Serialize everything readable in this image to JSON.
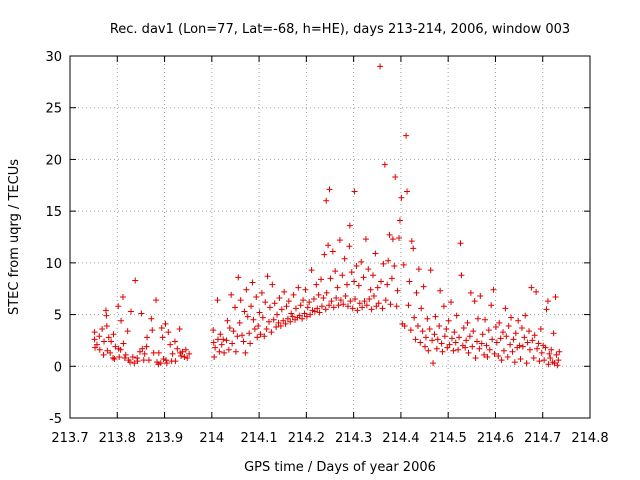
{
  "chart_data": {
    "type": "scatter",
    "title": "Rec. dav1 (Lon=77, Lat=-68, h=HE), days 213-214, 2006, window 003",
    "xlabel": "GPS time / Days of year 2006",
    "ylabel": "STEC from uqrg / TECUs",
    "xlim": [
      213.7,
      214.8
    ],
    "ylim": [
      -5,
      30
    ],
    "x_ticks": [
      "213.7",
      "213.8",
      "213.9",
      "214",
      "214.1",
      "214.2",
      "214.3",
      "214.4",
      "214.5",
      "214.6",
      "214.7",
      "214.8"
    ],
    "y_ticks": [
      "-5",
      "0",
      "5",
      "10",
      "15",
      "20",
      "25",
      "30"
    ],
    "grid": true,
    "marker": "+",
    "color": "#e00000",
    "points": [
      [
        213.752,
        3.3
      ],
      [
        213.752,
        2.6
      ],
      [
        213.753,
        1.8
      ],
      [
        213.757,
        2.1
      ],
      [
        213.762,
        2.9
      ],
      [
        213.763,
        1.6
      ],
      [
        213.768,
        3.6
      ],
      [
        213.771,
        1.1
      ],
      [
        213.772,
        2.4
      ],
      [
        213.776,
        5.4
      ],
      [
        213.777,
        4.9
      ],
      [
        213.778,
        3.9
      ],
      [
        213.779,
        1.5
      ],
      [
        213.782,
        2.8
      ],
      [
        213.785,
        1.3
      ],
      [
        213.787,
        2.4
      ],
      [
        213.791,
        0.8
      ],
      [
        213.792,
        3.1
      ],
      [
        213.794,
        0.7
      ],
      [
        213.796,
        1.9
      ],
      [
        213.802,
        5.8
      ],
      [
        213.803,
        1.7
      ],
      [
        213.804,
        0.9
      ],
      [
        213.807,
        1.6
      ],
      [
        213.808,
        4.4
      ],
      [
        213.812,
        6.7
      ],
      [
        213.813,
        2.2
      ],
      [
        213.816,
        0.8
      ],
      [
        213.818,
        1.1
      ],
      [
        213.822,
        3.4
      ],
      [
        213.824,
        0.6
      ],
      [
        213.827,
        0.4
      ],
      [
        213.829,
        5.3
      ],
      [
        213.833,
        0.9
      ],
      [
        213.836,
        0.3
      ],
      [
        213.838,
        8.3
      ],
      [
        213.842,
        0.8
      ],
      [
        213.843,
        0.5
      ],
      [
        213.848,
        1.4
      ],
      [
        213.851,
        5.1
      ],
      [
        213.853,
        1.7
      ],
      [
        213.856,
        0.6
      ],
      [
        213.858,
        1.2
      ],
      [
        213.862,
        1.9
      ],
      [
        213.863,
        2.8
      ],
      [
        213.867,
        0.6
      ],
      [
        213.872,
        4.6
      ],
      [
        213.874,
        3.5
      ],
      [
        213.877,
        1.3
      ],
      [
        213.882,
        6.4
      ],
      [
        213.884,
        0.4
      ],
      [
        213.887,
        0.2
      ],
      [
        213.888,
        1.3
      ],
      [
        213.892,
        0.3
      ],
      [
        213.894,
        3.7
      ],
      [
        213.896,
        2.8
      ],
      [
        213.898,
        0.7
      ],
      [
        213.902,
        4.1
      ],
      [
        213.903,
        0.6
      ],
      [
        213.905,
        0.3
      ],
      [
        213.908,
        3.3
      ],
      [
        213.912,
        2.1
      ],
      [
        213.915,
        0.5
      ],
      [
        213.917,
        1.2
      ],
      [
        213.922,
        2.4
      ],
      [
        213.923,
        0.5
      ],
      [
        213.927,
        1.7
      ],
      [
        213.932,
        3.6
      ],
      [
        213.933,
        1.3
      ],
      [
        213.935,
        1.0
      ],
      [
        213.938,
        1.4
      ],
      [
        213.942,
        0.9
      ],
      [
        213.945,
        1.6
      ],
      [
        213.948,
        0.8
      ],
      [
        213.952,
        1.2
      ],
      [
        214.003,
        3.5
      ],
      [
        214.004,
        2.3
      ],
      [
        214.005,
        0.9
      ],
      [
        214.007,
        1.8
      ],
      [
        214.012,
        6.4
      ],
      [
        214.013,
        2.6
      ],
      [
        214.016,
        1.4
      ],
      [
        214.018,
        3.1
      ],
      [
        214.021,
        2.1
      ],
      [
        214.024,
        2.6
      ],
      [
        214.026,
        1.3
      ],
      [
        214.031,
        2.5
      ],
      [
        214.033,
        4.4
      ],
      [
        214.036,
        1.6
      ],
      [
        214.038,
        3.7
      ],
      [
        214.041,
        6.9
      ],
      [
        214.043,
        2.2
      ],
      [
        214.046,
        3.4
      ],
      [
        214.049,
        5.7
      ],
      [
        214.051,
        1.4
      ],
      [
        214.054,
        2.9
      ],
      [
        214.056,
        8.6
      ],
      [
        214.059,
        4.2
      ],
      [
        214.061,
        6.4
      ],
      [
        214.064,
        3.0
      ],
      [
        214.067,
        2.4
      ],
      [
        214.069,
        5.3
      ],
      [
        214.071,
        1.3
      ],
      [
        214.073,
        7.4
      ],
      [
        214.076,
        4.8
      ],
      [
        214.079,
        3.2
      ],
      [
        214.081,
        2.2
      ],
      [
        214.083,
        5.8
      ],
      [
        214.086,
        8.1
      ],
      [
        214.088,
        4.5
      ],
      [
        214.091,
        3.6
      ],
      [
        214.094,
        6.7
      ],
      [
        214.096,
        2.8
      ],
      [
        214.098,
        3.9
      ],
      [
        214.101,
        5.2
      ],
      [
        214.103,
        3.1
      ],
      [
        214.106,
        7.1
      ],
      [
        214.108,
        4.7
      ],
      [
        214.111,
        2.9
      ],
      [
        214.113,
        6.2
      ],
      [
        214.116,
        3.6
      ],
      [
        214.118,
        8.7
      ],
      [
        214.121,
        4.3
      ],
      [
        214.123,
        5.7
      ],
      [
        214.126,
        3.3
      ],
      [
        214.128,
        7.9
      ],
      [
        214.131,
        4.5
      ],
      [
        214.133,
        6.1
      ],
      [
        214.136,
        3.8
      ],
      [
        214.138,
        5.0
      ],
      [
        214.141,
        4.2
      ],
      [
        214.143,
        6.6
      ],
      [
        214.146,
        3.9
      ],
      [
        214.148,
        5.5
      ],
      [
        214.151,
        4.4
      ],
      [
        214.153,
        7.2
      ],
      [
        214.156,
        4.1
      ],
      [
        214.158,
        5.8
      ],
      [
        214.161,
        4.6
      ],
      [
        214.163,
        6.3
      ],
      [
        214.166,
        4.3
      ],
      [
        214.168,
        5.1
      ],
      [
        214.171,
        4.8
      ],
      [
        214.173,
        6.9
      ],
      [
        214.176,
        4.5
      ],
      [
        214.178,
        5.6
      ],
      [
        214.181,
        4.7
      ],
      [
        214.183,
        7.6
      ],
      [
        214.186,
        4.9
      ],
      [
        214.188,
        5.9
      ],
      [
        214.191,
        4.6
      ],
      [
        214.193,
        6.4
      ],
      [
        214.196,
        5.1
      ],
      [
        214.198,
        7.4
      ],
      [
        214.201,
        4.8
      ],
      [
        214.203,
        5.7
      ],
      [
        214.206,
        6.2
      ],
      [
        214.208,
        5.0
      ],
      [
        214.211,
        9.3
      ],
      [
        214.213,
        5.4
      ],
      [
        214.216,
        6.5
      ],
      [
        214.218,
        5.3
      ],
      [
        214.221,
        7.9
      ],
      [
        214.223,
        5.6
      ],
      [
        214.226,
        6.9
      ],
      [
        214.228,
        5.2
      ],
      [
        214.231,
        8.4
      ],
      [
        214.233,
        5.8
      ],
      [
        214.236,
        6.6
      ],
      [
        214.238,
        10.8
      ],
      [
        214.241,
        5.5
      ],
      [
        214.242,
        16.0
      ],
      [
        214.243,
        7.1
      ],
      [
        214.246,
        11.7
      ],
      [
        214.248,
        5.9
      ],
      [
        214.249,
        17.1
      ],
      [
        214.251,
        8.5
      ],
      [
        214.253,
        6.3
      ],
      [
        214.256,
        11.1
      ],
      [
        214.258,
        5.7
      ],
      [
        214.261,
        9.2
      ],
      [
        214.263,
        6.6
      ],
      [
        214.266,
        7.6
      ],
      [
        214.268,
        5.9
      ],
      [
        214.271,
        12.2
      ],
      [
        214.273,
        6.4
      ],
      [
        214.276,
        8.8
      ],
      [
        214.278,
        6.0
      ],
      [
        214.281,
        10.4
      ],
      [
        214.283,
        6.8
      ],
      [
        214.286,
        7.9
      ],
      [
        214.288,
        5.8
      ],
      [
        214.291,
        11.6
      ],
      [
        214.292,
        13.6
      ],
      [
        214.293,
        6.3
      ],
      [
        214.296,
        9.1
      ],
      [
        214.298,
        5.6
      ],
      [
        214.301,
        8.2
      ],
      [
        214.302,
        16.9
      ],
      [
        214.303,
        6.5
      ],
      [
        214.306,
        9.7
      ],
      [
        214.308,
        5.4
      ],
      [
        214.311,
        7.8
      ],
      [
        214.313,
        6.1
      ],
      [
        214.316,
        10.1
      ],
      [
        214.318,
        5.7
      ],
      [
        214.321,
        8.6
      ],
      [
        214.323,
        6.3
      ],
      [
        214.326,
        12.3
      ],
      [
        214.328,
        5.9
      ],
      [
        214.331,
        9.4
      ],
      [
        214.333,
        6.5
      ],
      [
        214.336,
        7.4
      ],
      [
        214.338,
        5.5
      ],
      [
        214.341,
        8.8
      ],
      [
        214.343,
        6.8
      ],
      [
        214.346,
        10.9
      ],
      [
        214.348,
        5.8
      ],
      [
        214.351,
        7.6
      ],
      [
        214.353,
        6.1
      ],
      [
        214.356,
        29.0
      ],
      [
        214.358,
        8.2
      ],
      [
        214.361,
        5.6
      ],
      [
        214.363,
        9.9
      ],
      [
        214.366,
        19.5
      ],
      [
        214.368,
        6.4
      ],
      [
        214.371,
        7.9
      ],
      [
        214.373,
        10.2
      ],
      [
        214.376,
        12.7
      ],
      [
        214.378,
        6.0
      ],
      [
        214.381,
        8.5
      ],
      [
        214.383,
        12.3
      ],
      [
        214.386,
        9.7
      ],
      [
        214.388,
        18.3
      ],
      [
        214.391,
        5.8
      ],
      [
        214.393,
        7.3
      ],
      [
        214.396,
        12.4
      ],
      [
        214.398,
        14.1
      ],
      [
        214.401,
        16.3
      ],
      [
        214.403,
        4.1
      ],
      [
        214.406,
        9.8
      ],
      [
        214.408,
        3.9
      ],
      [
        214.411,
        22.3
      ],
      [
        214.413,
        16.9
      ],
      [
        214.416,
        5.9
      ],
      [
        214.418,
        8.2
      ],
      [
        214.421,
        3.5
      ],
      [
        214.423,
        12.1
      ],
      [
        214.426,
        11.4
      ],
      [
        214.428,
        4.7
      ],
      [
        214.431,
        2.6
      ],
      [
        214.433,
        7.1
      ],
      [
        214.436,
        3.9
      ],
      [
        214.438,
        9.4
      ],
      [
        214.441,
        2.3
      ],
      [
        214.443,
        5.6
      ],
      [
        214.446,
        3.4
      ],
      [
        214.448,
        7.7
      ],
      [
        214.451,
        1.9
      ],
      [
        214.453,
        2.8
      ],
      [
        214.456,
        4.6
      ],
      [
        214.458,
        1.5
      ],
      [
        214.461,
        3.6
      ],
      [
        214.463,
        9.3
      ],
      [
        214.466,
        2.5
      ],
      [
        214.468,
        0.3
      ],
      [
        214.471,
        3.1
      ],
      [
        214.473,
        4.8
      ],
      [
        214.476,
        1.7
      ],
      [
        214.478,
        2.6
      ],
      [
        214.481,
        3.9
      ],
      [
        214.483,
        7.3
      ],
      [
        214.486,
        2.2
      ],
      [
        214.488,
        1.4
      ],
      [
        214.491,
        5.8
      ],
      [
        214.493,
        2.9
      ],
      [
        214.496,
        3.6
      ],
      [
        214.498,
        1.8
      ],
      [
        214.501,
        4.4
      ],
      [
        214.503,
        2.1
      ],
      [
        214.506,
        6.2
      ],
      [
        214.508,
        2.7
      ],
      [
        214.511,
        1.5
      ],
      [
        214.513,
        3.3
      ],
      [
        214.516,
        2.3
      ],
      [
        214.518,
        4.9
      ],
      [
        214.521,
        1.6
      ],
      [
        214.523,
        2.8
      ],
      [
        214.526,
        11.9
      ],
      [
        214.528,
        8.8
      ],
      [
        214.531,
        2.0
      ],
      [
        214.533,
        3.7
      ],
      [
        214.536,
        1.8
      ],
      [
        214.538,
        2.5
      ],
      [
        214.541,
        4.2
      ],
      [
        214.543,
        1.3
      ],
      [
        214.546,
        2.9
      ],
      [
        214.548,
        7.1
      ],
      [
        214.551,
        1.9
      ],
      [
        214.553,
        3.4
      ],
      [
        214.556,
        6.3
      ],
      [
        214.558,
        0.8
      ],
      [
        214.561,
        2.4
      ],
      [
        214.563,
        4.6
      ],
      [
        214.566,
        1.7
      ],
      [
        214.568,
        6.8
      ],
      [
        214.571,
        2.2
      ],
      [
        214.573,
        3.1
      ],
      [
        214.576,
        1.1
      ],
      [
        214.578,
        4.5
      ],
      [
        214.581,
        2.0
      ],
      [
        214.583,
        0.9
      ],
      [
        214.586,
        3.5
      ],
      [
        214.588,
        1.6
      ],
      [
        214.591,
        5.9
      ],
      [
        214.593,
        2.6
      ],
      [
        214.596,
        7.4
      ],
      [
        214.598,
        1.2
      ],
      [
        214.601,
        3.8
      ],
      [
        214.603,
        2.3
      ],
      [
        214.606,
        1.0
      ],
      [
        214.608,
        4.2
      ],
      [
        214.611,
        2.7
      ],
      [
        214.613,
        0.6
      ],
      [
        214.616,
        3.3
      ],
      [
        214.618,
        1.5
      ],
      [
        214.621,
        5.6
      ],
      [
        214.623,
        2.9
      ],
      [
        214.626,
        0.9
      ],
      [
        214.628,
        3.9
      ],
      [
        214.631,
        2.1
      ],
      [
        214.633,
        4.7
      ],
      [
        214.636,
        1.4
      ],
      [
        214.638,
        2.6
      ],
      [
        214.641,
        0.4
      ],
      [
        214.643,
        3.2
      ],
      [
        214.646,
        1.8
      ],
      [
        214.648,
        4.4
      ],
      [
        214.651,
        2.0
      ],
      [
        214.653,
        0.7
      ],
      [
        214.656,
        3.7
      ],
      [
        214.658,
        1.9
      ],
      [
        214.661,
        2.8
      ],
      [
        214.663,
        4.9
      ],
      [
        214.666,
        0.3
      ],
      [
        214.668,
        2.3
      ],
      [
        214.671,
        3.4
      ],
      [
        214.673,
        1.6
      ],
      [
        214.676,
        7.6
      ],
      [
        214.678,
        2.5
      ],
      [
        214.681,
        0.8
      ],
      [
        214.683,
        3.0
      ],
      [
        214.686,
        7.2
      ],
      [
        214.688,
        1.7
      ],
      [
        214.691,
        2.2
      ],
      [
        214.693,
        0.5
      ],
      [
        214.696,
        3.6
      ],
      [
        214.698,
        1.3
      ],
      [
        214.701,
        2.0
      ],
      [
        214.703,
        0.6
      ],
      [
        214.706,
        1.8
      ],
      [
        214.708,
        5.5
      ],
      [
        214.711,
        6.3
      ],
      [
        214.712,
        0.2
      ],
      [
        214.714,
        1.2
      ],
      [
        214.716,
        0.8
      ],
      [
        214.718,
        1.6
      ],
      [
        214.721,
        0.4
      ],
      [
        214.723,
        3.2
      ],
      [
        214.725,
        0.3
      ],
      [
        214.727,
        6.7
      ],
      [
        214.729,
        1.1
      ],
      [
        214.731,
        0.1
      ],
      [
        214.733,
        0.6
      ],
      [
        214.735,
        1.4
      ]
    ]
  }
}
